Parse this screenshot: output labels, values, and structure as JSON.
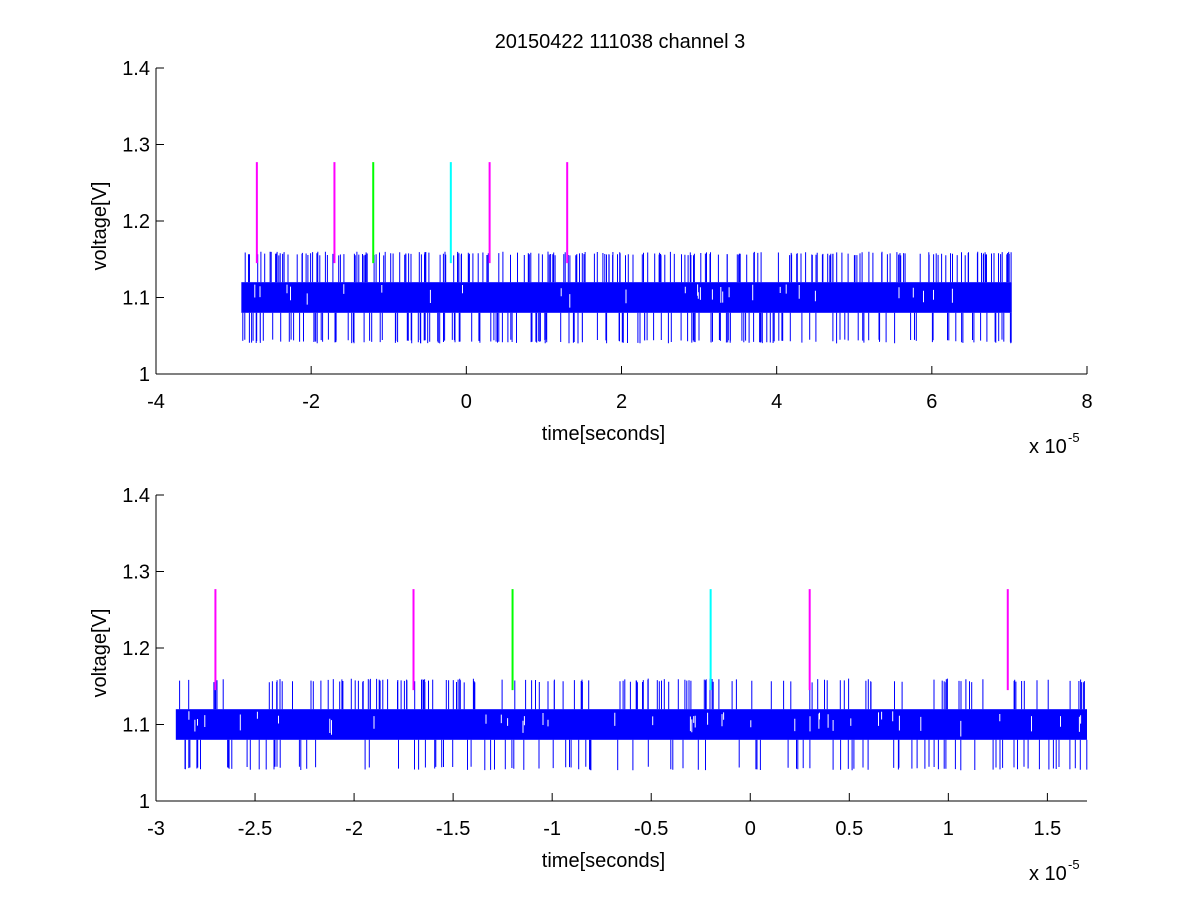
{
  "title": "20150422 111038 channel 3",
  "chart_data": [
    {
      "type": "line",
      "title": "20150422 111038 channel 3",
      "xlabel": "time[seconds]",
      "ylabel": "voltage[V]",
      "x_multiplier": "x 10",
      "x_exponent": "-5",
      "xlim": [
        -4,
        8
      ],
      "ylim": [
        1,
        1.4
      ],
      "xticks": [
        -4,
        -2,
        0,
        2,
        4,
        6,
        8
      ],
      "xtick_labels": [
        "-4",
        "-2",
        "0",
        "2",
        "4",
        "6",
        "8"
      ],
      "yticks": [
        1,
        1.1,
        1.2,
        1.3,
        1.4
      ],
      "ytick_labels": [
        "1",
        "1.1",
        "1.2",
        "1.3",
        "1.4"
      ],
      "grid": false,
      "signal": {
        "name": "",
        "color": "#0000ff",
        "x_range": [
          -2.9,
          7.03
        ],
        "band_low": 1.08,
        "band_high": 1.12,
        "spike_low": 1.04,
        "spike_high": 1.16
      },
      "markers": [
        {
          "x": -2.7,
          "y0": 1.145,
          "y1": 1.277,
          "color": "#ff00ff"
        },
        {
          "x": -1.7,
          "y0": 1.145,
          "y1": 1.277,
          "color": "#ff00ff"
        },
        {
          "x": -1.2,
          "y0": 1.145,
          "y1": 1.277,
          "color": "#00ff00"
        },
        {
          "x": -0.2,
          "y0": 1.145,
          "y1": 1.277,
          "color": "#00ffff"
        },
        {
          "x": 0.3,
          "y0": 1.145,
          "y1": 1.277,
          "color": "#ff00ff"
        },
        {
          "x": 1.3,
          "y0": 1.145,
          "y1": 1.277,
          "color": "#ff00ff"
        }
      ]
    },
    {
      "type": "line",
      "title": "",
      "xlabel": "time[seconds]",
      "ylabel": "voltage[V]",
      "x_multiplier": "x 10",
      "x_exponent": "-5",
      "xlim": [
        -3.0,
        1.7
      ],
      "ylim": [
        1,
        1.4
      ],
      "xticks": [
        -3,
        -2.5,
        -2,
        -1.5,
        -1,
        -0.5,
        0,
        0.5,
        1,
        1.5
      ],
      "xtick_labels": [
        "-3",
        "-2.5",
        "-2",
        "-1.5",
        "-1",
        "-0.5",
        "0",
        "0.5",
        "1",
        "1.5"
      ],
      "yticks": [
        1,
        1.1,
        1.2,
        1.3,
        1.4
      ],
      "ytick_labels": [
        "1",
        "1.1",
        "1.2",
        "1.3",
        "1.4"
      ],
      "grid": false,
      "signal": {
        "name": "",
        "color": "#0000ff",
        "x_range": [
          -2.9,
          1.7
        ],
        "band_low": 1.08,
        "band_high": 1.12,
        "spike_low": 1.04,
        "spike_high": 1.16
      },
      "markers": [
        {
          "x": -2.7,
          "y0": 1.145,
          "y1": 1.277,
          "color": "#ff00ff"
        },
        {
          "x": -1.7,
          "y0": 1.145,
          "y1": 1.277,
          "color": "#ff00ff"
        },
        {
          "x": -1.2,
          "y0": 1.145,
          "y1": 1.277,
          "color": "#00ff00"
        },
        {
          "x": -0.2,
          "y0": 1.145,
          "y1": 1.277,
          "color": "#00ffff"
        },
        {
          "x": 0.3,
          "y0": 1.145,
          "y1": 1.277,
          "color": "#ff00ff"
        },
        {
          "x": 1.3,
          "y0": 1.145,
          "y1": 1.277,
          "color": "#ff00ff"
        }
      ]
    }
  ]
}
